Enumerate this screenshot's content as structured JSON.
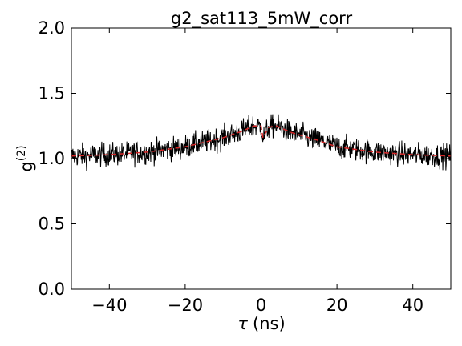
{
  "chart_data": {
    "type": "line",
    "title": "g2_sat113_5mW_corr",
    "xlabel": {
      "symbol": "τ",
      "unit": "(ns)"
    },
    "ylabel": {
      "base": "g",
      "superscript": "(2)"
    },
    "xlim": [
      -50,
      50
    ],
    "ylim": [
      0.0,
      2.0
    ],
    "xticks": [
      -40,
      -20,
      0,
      20,
      40
    ],
    "xtick_labels": [
      "−40",
      "−20",
      "0",
      "20",
      "40"
    ],
    "yticks": [
      0.0,
      0.5,
      1.0,
      1.5,
      2.0
    ],
    "ytick_labels": [
      "0.0",
      "0.5",
      "1.0",
      "1.5",
      "2.0"
    ],
    "grid": false,
    "legend": "none",
    "series": [
      {
        "style": "solid",
        "color": "#000000",
        "description": "noisy g2 measurement, ~1000 points",
        "x_range": [
          -50,
          50
        ],
        "num_points": 1000,
        "envelope": {
          "x": [
            -50,
            -40,
            -30,
            -20,
            -10,
            -5,
            -2,
            0,
            0.5,
            2,
            4,
            8,
            15,
            20,
            30,
            40,
            50
          ],
          "y": [
            1.02,
            1.03,
            1.05,
            1.09,
            1.16,
            1.21,
            1.25,
            1.25,
            1.16,
            1.24,
            1.25,
            1.2,
            1.14,
            1.09,
            1.05,
            1.03,
            1.02
          ]
        },
        "noise_amplitude": 0.045
      },
      {
        "style": "dashed",
        "color": "#d62728",
        "description": "fit",
        "x": [
          -50,
          -40,
          -30,
          -20,
          -10,
          -5,
          -2,
          0,
          0.5,
          2,
          4,
          8,
          15,
          20,
          30,
          40,
          50
        ],
        "y": [
          1.02,
          1.03,
          1.05,
          1.09,
          1.16,
          1.21,
          1.25,
          1.25,
          1.16,
          1.24,
          1.25,
          1.2,
          1.14,
          1.09,
          1.05,
          1.03,
          1.02
        ]
      }
    ]
  }
}
